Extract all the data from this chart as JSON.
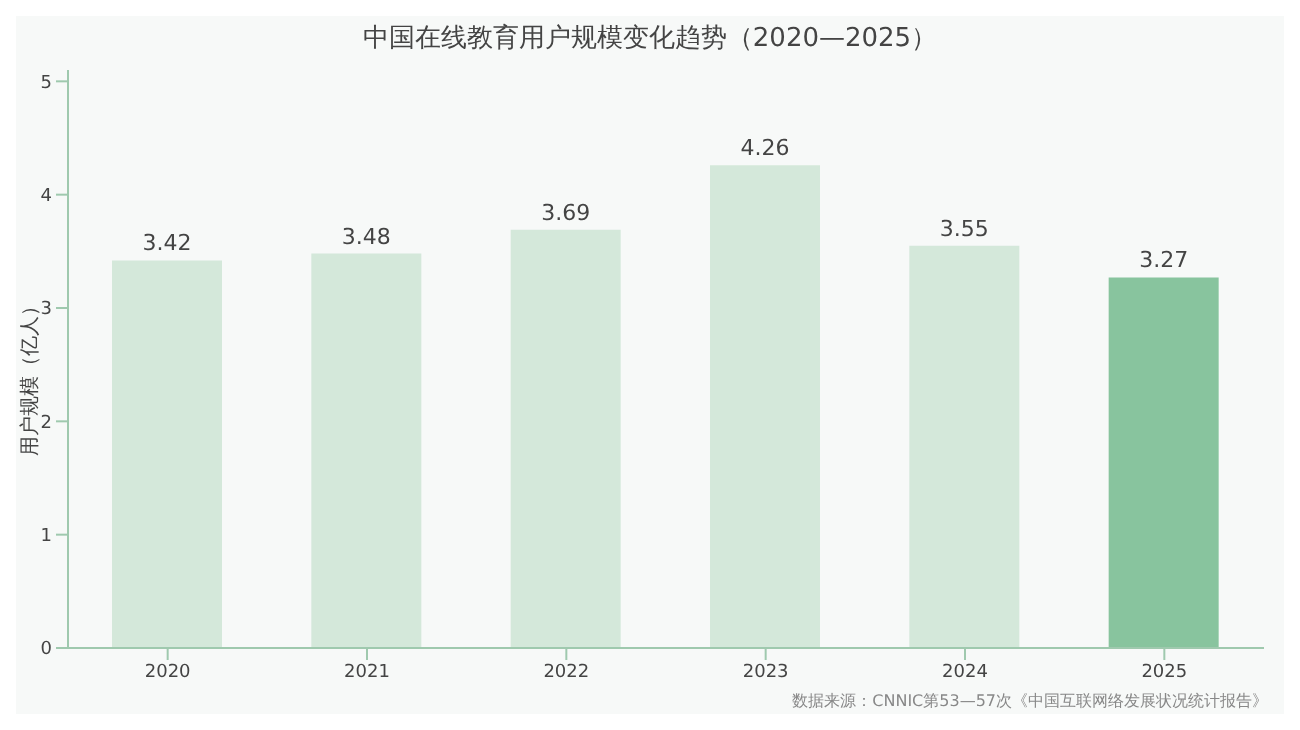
{
  "chart_data": {
    "type": "bar",
    "title": "中国在线教育用户规模变化趋势（2020—2025）",
    "ylabel": "用户规模（亿人）",
    "categories": [
      "2020",
      "2021",
      "2022",
      "2023",
      "2024",
      "2025"
    ],
    "values": [
      3.42,
      3.48,
      3.69,
      4.26,
      3.55,
      3.27
    ],
    "colors": [
      "#d4e8da",
      "#d4e8da",
      "#d4e8da",
      "#d4e8da",
      "#d4e8da",
      "#88c49e"
    ],
    "ylim": [
      0,
      5.1
    ],
    "yticks": [
      0,
      1,
      2,
      3,
      4,
      5
    ],
    "grid": false,
    "data_labels": true,
    "annotations": [
      "数据来源：CNNIC第53—57次《中国互联网络发展状况统计报告》"
    ]
  }
}
